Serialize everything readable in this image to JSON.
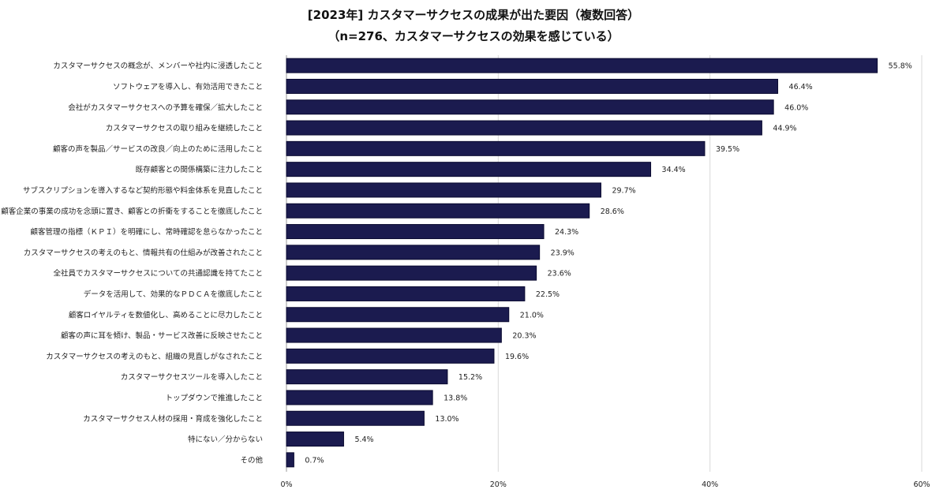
{
  "chart_data": {
    "type": "bar",
    "orientation": "horizontal",
    "title": "[2023年] カスタマーサクセスの成果が出た要因（複数回答）",
    "subtitle": "（n=276、カスタマーサクセスの効果を感じている）",
    "categories": [
      "カスタマーサクセスの概念が、メンバーや社内に浸透したこと",
      "ソフトウェアを導入し、有効活用できたこと",
      "会社がカスタマーサクセスへの予算を確保／拡大したこと",
      "カスタマーサクセスの取り組みを継続したこと",
      "顧客の声を製品／サービスの改良／向上のために活用したこと",
      "既存顧客との関係構築に注力したこと",
      "サブスクリプションを導入するなど契約形態や料金体系を見直したこと",
      "顧客企業の事業の成功を念頭に置き、顧客との折衝をすることを徹底したこと",
      "顧客管理の指標（ＫＰＩ）を明確にし、常時確認を怠らなかったこと",
      "カスタマーサクセスの考えのもと、情報共有の仕組みが改善されたこと",
      "全社員でカスタマーサクセスについての共通認識を持てたこと",
      "データを活用して、効果的なＰＤＣＡを徹底したこと",
      "顧客ロイヤルティを数値化し、高めることに尽力したこと",
      "顧客の声に耳を傾け、製品・サービス改善に反映させたこと",
      "カスタマーサクセスの考えのもと、組織の見直しがなされたこと",
      "カスタマーサクセスツールを導入したこと",
      "トップダウンで推進したこと",
      "カスタマーサクセス人材の採用・育成を強化したこと",
      "特にない／分からない",
      "その他"
    ],
    "values": [
      55.8,
      46.4,
      46.0,
      44.9,
      39.5,
      34.4,
      29.7,
      28.6,
      24.3,
      23.9,
      23.6,
      22.5,
      21.0,
      20.3,
      19.6,
      15.2,
      13.8,
      13.0,
      5.4,
      0.7
    ],
    "value_labels": [
      "55.8%",
      "46.4%",
      "46.0%",
      "44.9%",
      "39.5%",
      "34.4%",
      "29.7%",
      "28.6%",
      "24.3%",
      "23.9%",
      "23.6%",
      "22.5%",
      "21.0%",
      "20.3%",
      "19.6%",
      "15.2%",
      "13.8%",
      "13.0%",
      "5.4%",
      "0.7%"
    ],
    "xlim": [
      0,
      60
    ],
    "xticks": [
      0,
      20,
      40,
      60
    ],
    "xtick_labels": [
      "0%",
      "20%",
      "40%",
      "60%"
    ],
    "grid": "vertical",
    "bar_color": "#1b1b4f"
  }
}
